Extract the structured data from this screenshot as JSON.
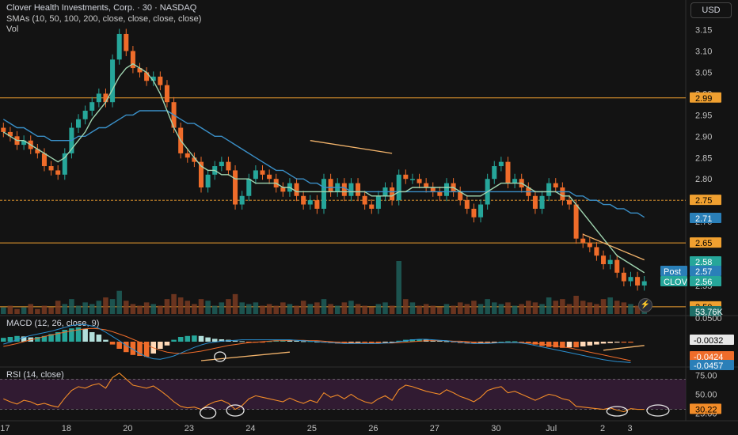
{
  "header": {
    "title": "Clover Health Investments, Corp. · 30 · NASDAQ",
    "sma_legend": "SMAs (10, 50, 100, 200, close, close, close, close)",
    "vol_label": "Vol"
  },
  "currency_button": "USD",
  "theme": {
    "background": "#131313",
    "candle_up": "#26a69a",
    "candle_down": "#ef6c2a",
    "level_line": "#f0a030",
    "sma_fast": "#9fd4b0",
    "sma_slow": "#3a8fc7",
    "rsi_line": "#f28c28",
    "rsi_band": "#3c1f3d"
  },
  "chart_data": [
    {
      "type": "candlestick",
      "title": "Clover Health Investments, Corp. · 30 · NASDAQ",
      "x_tick_labels": [
        "17",
        "18",
        "20",
        "23",
        "24",
        "25",
        "26",
        "27",
        "30",
        "Jul",
        "2",
        "3"
      ],
      "y_tick_labels": [
        "3.15",
        "3.10",
        "3.05",
        "3.00",
        "2.95",
        "2.90",
        "2.85",
        "2.80",
        "2.75",
        "2.70",
        "2.65",
        "2.60",
        "2.55",
        "2.50"
      ],
      "ylim": [
        2.485,
        3.19
      ],
      "horizontal_levels": [
        2.99,
        2.75,
        2.65,
        2.5
      ],
      "series": [
        {
          "name": "CLOV",
          "close": [
            2.91,
            2.9,
            2.88,
            2.89,
            2.87,
            2.86,
            2.83,
            2.82,
            2.81,
            2.86,
            2.92,
            2.94,
            2.96,
            2.98,
            3.0,
            2.98,
            3.08,
            3.14,
            3.1,
            3.06,
            3.05,
            3.03,
            3.04,
            3.02,
            2.98,
            2.92,
            2.86,
            2.85,
            2.84,
            2.78,
            2.81,
            2.83,
            2.84,
            2.82,
            2.74,
            2.76,
            2.8,
            2.82,
            2.81,
            2.8,
            2.78,
            2.77,
            2.79,
            2.76,
            2.74,
            2.75,
            2.73,
            2.8,
            2.77,
            2.79,
            2.76,
            2.79,
            2.76,
            2.74,
            2.73,
            2.76,
            2.78,
            2.75,
            2.81,
            2.8,
            2.8,
            2.79,
            2.78,
            2.77,
            2.76,
            2.79,
            2.77,
            2.75,
            2.73,
            2.71,
            2.74,
            2.8,
            2.83,
            2.84,
            2.79,
            2.8,
            2.78,
            2.76,
            2.73,
            2.76,
            2.79,
            2.78,
            2.75,
            2.74,
            2.66,
            2.65,
            2.64,
            2.62,
            2.6,
            2.61,
            2.58,
            2.56,
            2.57,
            2.55,
            2.56
          ]
        },
        {
          "name": "SMA 10",
          "values": [
            2.91,
            2.9,
            2.89,
            2.89,
            2.88,
            2.87,
            2.86,
            2.85,
            2.84,
            2.85,
            2.87,
            2.89,
            2.91,
            2.94,
            2.96,
            2.98,
            3.01,
            3.04,
            3.06,
            3.07,
            3.06,
            3.05,
            3.03,
            3.0,
            2.96,
            2.92,
            2.89,
            2.87,
            2.85,
            2.83,
            2.82,
            2.82,
            2.81,
            2.81,
            2.8,
            2.8,
            2.8,
            2.79,
            2.79,
            2.79,
            2.79,
            2.78,
            2.78,
            2.77,
            2.77,
            2.77,
            2.77,
            2.77,
            2.77,
            2.77,
            2.77,
            2.77,
            2.77,
            2.77,
            2.76,
            2.76,
            2.76,
            2.76,
            2.77,
            2.77,
            2.78,
            2.78,
            2.78,
            2.78,
            2.78,
            2.78,
            2.78,
            2.77,
            2.76,
            2.76,
            2.76,
            2.77,
            2.78,
            2.79,
            2.79,
            2.79,
            2.79,
            2.78,
            2.77,
            2.77,
            2.77,
            2.77,
            2.76,
            2.76,
            2.74,
            2.72,
            2.7,
            2.68,
            2.66,
            2.64,
            2.62,
            2.61,
            2.6,
            2.59,
            2.58
          ]
        },
        {
          "name": "SMA 50",
          "values": [
            2.94,
            2.93,
            2.92,
            2.92,
            2.91,
            2.9,
            2.9,
            2.89,
            2.89,
            2.89,
            2.89,
            2.9,
            2.9,
            2.91,
            2.92,
            2.92,
            2.93,
            2.94,
            2.95,
            2.95,
            2.96,
            2.96,
            2.96,
            2.96,
            2.96,
            2.95,
            2.94,
            2.93,
            2.93,
            2.92,
            2.91,
            2.9,
            2.9,
            2.89,
            2.88,
            2.87,
            2.86,
            2.85,
            2.84,
            2.83,
            2.82,
            2.82,
            2.81,
            2.8,
            2.8,
            2.79,
            2.79,
            2.78,
            2.78,
            2.78,
            2.78,
            2.77,
            2.77,
            2.77,
            2.77,
            2.77,
            2.77,
            2.77,
            2.77,
            2.77,
            2.77,
            2.77,
            2.77,
            2.77,
            2.77,
            2.77,
            2.77,
            2.77,
            2.77,
            2.77,
            2.77,
            2.77,
            2.77,
            2.77,
            2.77,
            2.77,
            2.77,
            2.77,
            2.77,
            2.77,
            2.77,
            2.77,
            2.77,
            2.77,
            2.76,
            2.76,
            2.75,
            2.75,
            2.74,
            2.74,
            2.73,
            2.73,
            2.72,
            2.72,
            2.71
          ]
        }
      ],
      "trendlines": [
        {
          "from": [
            2.89,
            45
          ],
          "to": [
            2.86,
            57
          ]
        },
        {
          "from": [
            2.67,
            85
          ],
          "to": [
            2.61,
            94
          ]
        }
      ],
      "price_labels": [
        {
          "text": "2.99"
        },
        {
          "text": "2.75"
        },
        {
          "text": "2.71"
        },
        {
          "text": "2.65"
        },
        {
          "text": "2.58"
        },
        {
          "text": "2.57",
          "prefix": "Post"
        },
        {
          "text": "2.56",
          "prefix": "CLOV"
        },
        {
          "text": "2.50"
        },
        {
          "text": "53.76K"
        }
      ]
    },
    {
      "type": "bar",
      "title": "Vol",
      "values": [
        4,
        5,
        3,
        4,
        6,
        3,
        5,
        4,
        8,
        6,
        9,
        5,
        7,
        6,
        8,
        10,
        9,
        14,
        8,
        6,
        5,
        7,
        6,
        5,
        9,
        12,
        10,
        8,
        6,
        9,
        8,
        5,
        7,
        9,
        12,
        7,
        6,
        7,
        5,
        6,
        5,
        7,
        6,
        5,
        8,
        6,
        7,
        9,
        6,
        5,
        7,
        8,
        6,
        5,
        4,
        6,
        7,
        5,
        32,
        9,
        7,
        5,
        6,
        5,
        4,
        6,
        5,
        7,
        6,
        8,
        6,
        9,
        7,
        6,
        7,
        5,
        6,
        8,
        7,
        6,
        10,
        8,
        9,
        6,
        11,
        8,
        7,
        6,
        9,
        10,
        8,
        7,
        6,
        5,
        4
      ],
      "last_value_label": "53.76K"
    },
    {
      "type": "bar",
      "title": "MACD (12, 26, close, 9)",
      "y_tick_labels": [
        "0.0500"
      ],
      "histogram": [
        0.008,
        0.01,
        0.012,
        0.011,
        0.009,
        0.01,
        0.012,
        0.016,
        0.02,
        0.025,
        0.028,
        0.03,
        0.027,
        0.02,
        0.015,
        0.004,
        -0.006,
        -0.015,
        -0.022,
        -0.028,
        -0.03,
        -0.032,
        -0.025,
        -0.015,
        -0.008,
        0.004,
        0.01,
        0.012,
        0.013,
        0.012,
        0.009,
        0.006,
        0.005,
        0.004,
        0.002,
        0.001,
        -0.001,
        -0.002,
        -0.002,
        0.001,
        0.003,
        0.004,
        0.003,
        0.002,
        0.001,
        0.001,
        0.0,
        -0.002,
        -0.003,
        -0.004,
        -0.004,
        -0.003,
        -0.002,
        -0.002,
        -0.003,
        -0.003,
        -0.002,
        -0.001,
        0.002,
        0.004,
        0.005,
        0.005,
        0.004,
        0.003,
        0.002,
        0.001,
        -0.001,
        -0.003,
        -0.004,
        -0.004,
        -0.003,
        -0.002,
        -0.001,
        0.0,
        0.001,
        0.001,
        -0.001,
        -0.003,
        -0.006,
        -0.009,
        -0.011,
        -0.012,
        -0.013,
        -0.012,
        -0.012,
        -0.01,
        -0.008,
        -0.006,
        -0.004,
        -0.003,
        -0.002,
        -0.002,
        -0.002
      ],
      "macd_line": [
        -0.005,
        -0.001,
        0.004,
        0.009,
        0.013,
        0.016,
        0.019,
        0.022,
        0.026,
        0.03,
        0.034,
        0.036,
        0.036,
        0.033,
        0.028,
        0.02,
        0.011,
        0.002,
        -0.008,
        -0.016,
        -0.025,
        -0.032,
        -0.036,
        -0.037,
        -0.034,
        -0.03,
        -0.024,
        -0.018,
        -0.012,
        -0.007,
        -0.003,
        -0.001,
        0.001,
        0.002,
        0.003,
        0.004,
        0.004,
        0.004,
        0.004,
        0.004,
        0.004,
        0.004,
        0.004,
        0.003,
        0.002,
        0.001,
        0.0,
        -0.001,
        -0.002,
        -0.003,
        -0.004,
        -0.004,
        -0.004,
        -0.004,
        -0.004,
        -0.004,
        -0.003,
        -0.002,
        0.0,
        0.002,
        0.004,
        0.005,
        0.005,
        0.004,
        0.003,
        0.002,
        0.0,
        -0.001,
        -0.003,
        -0.004,
        -0.004,
        -0.004,
        -0.003,
        -0.002,
        -0.002,
        -0.002,
        -0.003,
        -0.005,
        -0.008,
        -0.011,
        -0.014,
        -0.017,
        -0.02,
        -0.023,
        -0.026,
        -0.029,
        -0.032,
        -0.035,
        -0.038,
        -0.04,
        -0.042,
        -0.043,
        -0.044
      ],
      "signal_line": [
        -0.01,
        -0.007,
        -0.004,
        0.0,
        0.004,
        0.007,
        0.011,
        0.014,
        0.017,
        0.02,
        0.023,
        0.025,
        0.027,
        0.028,
        0.027,
        0.025,
        0.021,
        0.016,
        0.011,
        0.005,
        -0.001,
        -0.007,
        -0.013,
        -0.018,
        -0.022,
        -0.024,
        -0.025,
        -0.024,
        -0.022,
        -0.02,
        -0.017,
        -0.014,
        -0.011,
        -0.008,
        -0.006,
        -0.004,
        -0.002,
        -0.001,
        0.0,
        0.001,
        0.002,
        0.002,
        0.003,
        0.003,
        0.003,
        0.002,
        0.002,
        0.001,
        0.0,
        -0.001,
        -0.002,
        -0.002,
        -0.003,
        -0.003,
        -0.003,
        -0.003,
        -0.003,
        -0.003,
        -0.002,
        -0.001,
        0.0,
        0.001,
        0.002,
        0.002,
        0.002,
        0.002,
        0.001,
        0.001,
        0.0,
        -0.001,
        -0.002,
        -0.002,
        -0.002,
        -0.002,
        -0.002,
        -0.002,
        -0.002,
        -0.003,
        -0.004,
        -0.005,
        -0.007,
        -0.009,
        -0.011,
        -0.013,
        -0.016,
        -0.019,
        -0.022,
        -0.025,
        -0.028,
        -0.031,
        -0.034,
        -0.037,
        -0.04
      ],
      "trendlines": [
        {
          "from": [
            -0.04,
            29
          ],
          "to": [
            -0.022,
            42
          ]
        },
        {
          "from": [
            -0.018,
            88
          ],
          "to": [
            -0.008,
            94
          ]
        }
      ],
      "value_labels": [
        {
          "text": "-0.0032"
        },
        {
          "text": "-0.0424"
        },
        {
          "text": "-0.0457"
        }
      ]
    },
    {
      "type": "line",
      "title": "RSI (14, close)",
      "y_tick_labels": [
        "75.00",
        "50.00",
        "25.00"
      ],
      "ylim": [
        16,
        85
      ],
      "band": [
        30,
        70
      ],
      "series": [
        {
          "name": "RSI",
          "values": [
            44,
            40,
            37,
            42,
            40,
            36,
            38,
            35,
            33,
            45,
            55,
            60,
            58,
            62,
            64,
            58,
            72,
            78,
            70,
            62,
            60,
            58,
            61,
            55,
            48,
            40,
            34,
            32,
            33,
            30,
            36,
            40,
            42,
            38,
            30,
            35,
            44,
            48,
            46,
            44,
            42,
            40,
            45,
            41,
            38,
            42,
            39,
            52,
            46,
            49,
            44,
            50,
            44,
            40,
            38,
            44,
            48,
            42,
            56,
            62,
            60,
            57,
            54,
            52,
            50,
            56,
            52,
            47,
            44,
            40,
            46,
            55,
            58,
            60,
            52,
            54,
            50,
            46,
            42,
            46,
            50,
            48,
            44,
            42,
            34,
            33,
            32,
            31,
            30,
            32,
            29,
            27,
            31,
            30,
            30
          ]
        }
      ],
      "value_labels": [
        {
          "text": "30.22"
        }
      ]
    }
  ]
}
